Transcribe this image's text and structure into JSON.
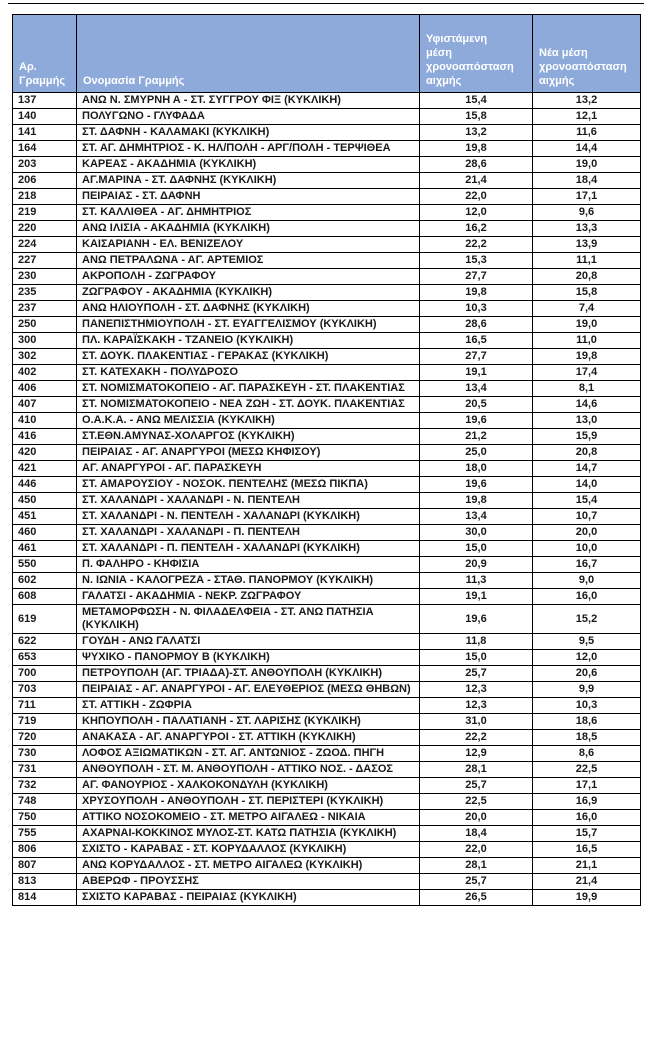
{
  "page": {
    "background": "#FFFFFF"
  },
  "style": {
    "header_bg": "#8EAADB",
    "header_text_color": "#FFFFFF",
    "border_color": "#000000"
  },
  "table": {
    "header": {
      "line_number": "Αρ.\nΓραμμής",
      "line_name": "Ονομασία Γραμμής",
      "existing_headway": "Υφιστάμενη\nμέση\nχρονοαπόσταση\nαιχμής",
      "new_headway": "Νέα μέση\nχρονοαπόσταση\nαιχμής"
    },
    "rows": [
      [
        "137",
        "ΑΝΩ Ν. ΣΜΥΡΝΗ Α - ΣΤ. ΣΥΓΓΡΟΥ ΦΙΞ (ΚΥΚΛΙΚΗ)",
        "15,4",
        "13,2"
      ],
      [
        "140",
        "ΠΟΛΥΓΩΝΟ - ΓΛΥΦΑΔΑ",
        "15,8",
        "12,1"
      ],
      [
        "141",
        "ΣΤ. ΔΑΦΝΗ - ΚΑΛΑΜΑΚΙ (ΚΥΚΛΙΚΗ)",
        "13,2",
        "11,6"
      ],
      [
        "164",
        "ΣΤ. ΑΓ. ΔΗΜΗΤΡΙΟΣ - Κ. ΗΛ/ΠΟΛΗ - ΑΡΓ/ΠΟΛΗ - ΤΕΡΨΙΘΕΑ",
        "19,8",
        "14,4"
      ],
      [
        "203",
        "ΚΑΡΕΑΣ - ΑΚΑΔΗΜΙΑ (ΚΥΚΛΙΚΗ)",
        "28,6",
        "19,0"
      ],
      [
        "206",
        "ΑΓ.ΜΑΡΙΝΑ - ΣΤ. ΔΑΦΝΗΣ (ΚΥΚΛΙΚΗ)",
        "21,4",
        "18,4"
      ],
      [
        "218",
        "ΠΕΙΡΑΙΑΣ - ΣΤ. ΔΑΦΝΗ",
        "22,0",
        "17,1"
      ],
      [
        "219",
        "ΣΤ. ΚΑΛΛΙΘΕΑ - ΑΓ. ΔΗΜΗΤΡΙΟΣ",
        "12,0",
        "9,6"
      ],
      [
        "220",
        "ΑΝΩ ΙΛΙΣΙΑ - ΑΚΑΔΗΜΙΑ (ΚΥΚΛΙΚΗ)",
        "16,2",
        "13,3"
      ],
      [
        "224",
        "ΚΑΙΣΑΡΙΑΝΗ - ΕΛ. ΒΕΝΙΖΕΛΟΥ",
        "22,2",
        "13,9"
      ],
      [
        "227",
        "ΑΝΩ ΠΕΤΡΑΛΩΝΑ - ΑΓ. ΑΡΤΕΜΙΟΣ",
        "15,3",
        "11,1"
      ],
      [
        "230",
        "ΑΚΡΟΠΟΛΗ - ΖΩΓΡΑΦΟΥ",
        "27,7",
        "20,8"
      ],
      [
        "235",
        "ΖΩΓΡΑΦΟΥ - ΑΚΑΔΗΜΙΑ (ΚΥΚΛΙΚΗ)",
        "19,8",
        "15,8"
      ],
      [
        "237",
        "ΑΝΩ ΗΛΙΟΥΠΟΛΗ - ΣΤ. ΔΑΦΝΗΣ (ΚΥΚΛΙΚΗ)",
        "10,3",
        "7,4"
      ],
      [
        "250",
        "ΠΑΝΕΠΙΣΤΗΜΙΟΥΠΟΛΗ - ΣΤ. ΕΥΑΓΓΕΛΙΣΜΟΥ (ΚΥΚΛΙΚΗ)",
        "28,6",
        "19,0"
      ],
      [
        "300",
        "ΠΛ. ΚΑΡΑΪΣΚΑΚΗ - ΤΖΑΝΕΙΟ (ΚΥΚΛΙΚΗ)",
        "16,5",
        "11,0"
      ],
      [
        "302",
        "ΣΤ. ΔΟΥΚ. ΠΛΑΚΕΝΤΙΑΣ - ΓΕΡΑΚΑΣ (ΚΥΚΛΙΚΗ)",
        "27,7",
        "19,8"
      ],
      [
        "402",
        "ΣΤ. ΚΑΤΕΧΑΚΗ - ΠΟΛΥΔΡΟΣΟ",
        "19,1",
        "17,4"
      ],
      [
        "406",
        "ΣΤ. ΝΟΜΙΣΜΑΤΟΚΟΠΕΙΟ - ΑΓ. ΠΑΡΑΣΚΕΥΗ - ΣΤ. ΠΛΑΚΕΝΤΙΑΣ",
        "13,4",
        "8,1"
      ],
      [
        "407",
        "ΣΤ. ΝΟΜΙΣΜΑΤΟΚΟΠΕΙΟ - ΝΕΑ ΖΩΗ - ΣΤ. ΔΟΥΚ. ΠΛΑΚΕΝΤΙΑΣ",
        "20,5",
        "14,6"
      ],
      [
        "410",
        "Ο.Α.Κ.Α. - ΑΝΩ ΜΕΛΙΣΣΙΑ (ΚΥΚΛΙΚΗ)",
        "19,6",
        "13,0"
      ],
      [
        "416",
        "ΣΤ.ΕΘΝ.ΑΜΥΝΑΣ-ΧΟΛΑΡΓΟΣ (ΚΥΚΛΙΚΗ)",
        "21,2",
        "15,9"
      ],
      [
        "420",
        "ΠΕΙΡΑΙΑΣ - ΑΓ. ΑΝΑΡΓΥΡΟΙ  (ΜΕΣΩ ΚΗΦΙΣΟΥ)",
        "25,0",
        "20,8"
      ],
      [
        "421",
        "ΑΓ. ΑΝΑΡΓΥΡΟΙ - ΑΓ. ΠΑΡΑΣΚΕΥΗ",
        "18,0",
        "14,7"
      ],
      [
        "446",
        "ΣΤ. ΑΜΑΡΟΥΣΙΟΥ - ΝΟΣΟΚ. ΠΕΝΤΕΛΗΣ (ΜΕΣΩ ΠΙΚΠΑ)",
        "19,6",
        "14,0"
      ],
      [
        "450",
        "ΣΤ. ΧΑΛΑΝΔΡΙ - ΧΑΛΑΝΔΡΙ - Ν. ΠΕΝΤΕΛΗ",
        "19,8",
        "15,4"
      ],
      [
        "451",
        "ΣΤ. ΧΑΛΑΝΔΡΙ - Ν. ΠΕΝΤΕΛΗ - ΧΑΛΑΝΔΡΙ (ΚΥΚΛΙΚΗ)",
        "13,4",
        "10,7"
      ],
      [
        "460",
        "ΣΤ. ΧΑΛΑΝΔΡΙ - ΧΑΛΑΝΔΡΙ - Π. ΠΕΝΤΕΛΗ",
        "30,0",
        "20,0"
      ],
      [
        "461",
        "ΣΤ. ΧΑΛΑΝΔΡΙ - Π. ΠΕΝΤΕΛΗ - ΧΑΛΑΝΔΡΙ (ΚΥΚΛΙΚΗ)",
        "15,0",
        "10,0"
      ],
      [
        "550",
        "Π. ΦΑΛΗΡΟ - ΚΗΦΙΣΙΑ",
        "20,9",
        "16,7"
      ],
      [
        "602",
        "Ν. ΙΩΝΙΑ - ΚΑΛΟΓΡΕΖΑ - ΣΤΑΘ. ΠΑΝΟΡΜΟΥ (ΚΥΚΛΙΚΗ)",
        "11,3",
        "9,0"
      ],
      [
        "608",
        "ΓΑΛΑΤΣΙ - ΑΚΑΔΗΜΙΑ - ΝΕΚΡ. ΖΩΓΡΑΦΟΥ",
        "19,1",
        "16,0"
      ],
      [
        "619",
        "ΜΕΤΑΜΟΡΦΩΣΗ - Ν. ΦΙΛΑΔΕΛΦΕΙΑ - ΣΤ. ΑΝΩ ΠΑΤΗΣΙΑ\n(ΚΥΚΛΙΚΗ)",
        "19,6",
        "15,2"
      ],
      [
        "622",
        "ΓΟΥΔΗ - ΑΝΩ ΓΑΛΑΤΣΙ",
        "11,8",
        "9,5"
      ],
      [
        "653",
        "ΨΥΧΙΚΟ - ΠΑΝΟΡΜΟΥ Β (ΚΥΚΛΙΚΗ)",
        "15,0",
        "12,0"
      ],
      [
        "700",
        "ΠΕΤΡΟΥΠΟΛΗ (ΑΓ. ΤΡΙΑΔΑ)-ΣΤ. ΑΝΘΟΥΠΟΛΗ (ΚΥΚΛΙΚΗ)",
        "25,7",
        "20,6"
      ],
      [
        "703",
        "ΠΕΙΡΑΙΑΣ - ΑΓ. ΑΝΑΡΓΥΡΟΙ - ΑΓ. ΕΛΕΥΘΕΡΙΟΣ (ΜΕΣΩ ΘΗΒΩΝ)",
        "12,3",
        "9,9"
      ],
      [
        "711",
        "ΣΤ. ΑΤΤΙΚΗ - ΖΩΦΡΙΑ",
        "12,3",
        "10,3"
      ],
      [
        "719",
        "ΚΗΠΟΥΠΟΛΗ - ΠΑΛΑΤΙΑΝΗ - ΣΤ. ΛΑΡΙΣΗΣ (ΚΥΚΛΙΚΗ)",
        "31,0",
        "18,6"
      ],
      [
        "720",
        "ΑΝΑΚΑΣΑ - ΑΓ. ΑΝΑΡΓΥΡΟΙ - ΣΤ. ΑΤΤΙΚΗ (ΚΥΚΛΙΚΗ)",
        "22,2",
        "18,5"
      ],
      [
        "730",
        "ΛΟΦΟΣ ΑΞΙΩΜΑΤΙΚΩΝ - ΣΤ. ΑΓ. ΑΝΤΩΝΙΟΣ - ΖΩΟΔ. ΠΗΓΗ",
        "12,9",
        "8,6"
      ],
      [
        "731",
        "ΑΝΘΟΥΠΟΛΗ - ΣΤ. Μ. ΑΝΘΟΥΠΟΛΗ - ΑΤΤΙΚΟ ΝΟΣ. - ΔΑΣΟΣ",
        "28,1",
        "22,5"
      ],
      [
        "732",
        "ΑΓ. ΦΑΝΟΥΡΙΟΣ - ΧΑΛΚΟΚΟΝΔΥΛΗ (ΚΥΚΛΙΚΗ)",
        "25,7",
        "17,1"
      ],
      [
        "748",
        "ΧΡΥΣΟΥΠΟΛΗ - ΑΝΘΟΥΠΟΛΗ - ΣΤ. ΠΕΡΙΣΤΕΡΙ (ΚΥΚΛΙΚΗ)",
        "22,5",
        "16,9"
      ],
      [
        "750",
        "ΑΤΤΙΚΟ ΝΟΣΟΚΟΜΕΙΟ - ΣΤ. ΜΕΤΡΟ ΑΙΓΑΛΕΩ - ΝΙΚΑΙΑ",
        "20,0",
        "16,0"
      ],
      [
        "755",
        "ΑΧΑΡΝΑΙ-ΚΟΚΚΙΝΟΣ ΜΥΛΟΣ-ΣΤ. ΚΑΤΩ ΠΑΤΗΣΙΑ (ΚΥΚΛΙΚΗ)",
        "18,4",
        "15,7"
      ],
      [
        "806",
        "ΣΧΙΣΤΟ - ΚΑΡΑΒΑΣ  - ΣΤ. ΚΟΡΥΔΑΛΛΟΣ (ΚΥΚΛΙΚΗ)",
        "22,0",
        "16,5"
      ],
      [
        "807",
        "ΑΝΩ ΚΟΡΥΔΑΛΛΟΣ - ΣΤ. ΜΕΤΡΟ ΑΙΓΑΛΕΩ (ΚΥΚΛΙΚΗ)",
        "28,1",
        "21,1"
      ],
      [
        "813",
        "ΑΒΕΡΩΦ - ΠΡΟΥΣΣΗΣ",
        "25,7",
        "21,4"
      ],
      [
        "814",
        "ΣΧΙΣΤΟ ΚΑΡΑΒΑΣ - ΠΕΙΡΑΙΑΣ (ΚΥΚΛΙΚΗ)",
        "26,5",
        "19,9"
      ]
    ]
  }
}
